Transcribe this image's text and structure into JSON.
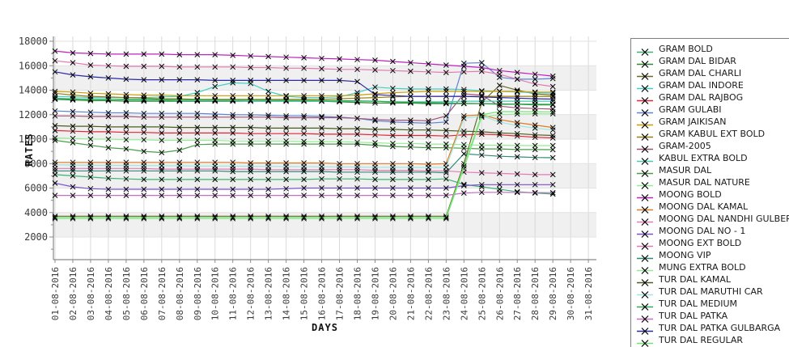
{
  "chart_data": {
    "type": "line",
    "title": "",
    "xlabel": "DAYS",
    "ylabel": "RATES",
    "legend_position": "right",
    "grid": true,
    "marker": "x",
    "marker_color": "#000000",
    "band_color": "#f0f0f0",
    "band_fill_ranges": [
      [
        2000,
        4000
      ],
      [
        6000,
        8000
      ],
      [
        10000,
        12000
      ],
      [
        14000,
        16000
      ]
    ],
    "ylim": [
      0,
      18000
    ],
    "y_ticks": [
      2000,
      4000,
      6000,
      8000,
      10000,
      12000,
      14000,
      16000,
      18000
    ],
    "x_categories": [
      "01-08-2016",
      "02-08-2016",
      "03-08-2016",
      "04-08-2016",
      "05-08-2016",
      "06-08-2016",
      "07-08-2016",
      "08-08-2016",
      "09-08-2016",
      "10-08-2016",
      "11-08-2016",
      "12-08-2016",
      "13-08-2016",
      "14-08-2016",
      "15-08-2016",
      "16-08-2016",
      "17-08-2016",
      "18-08-2016",
      "19-08-2016",
      "20-08-2016",
      "21-08-2016",
      "22-08-2016",
      "23-08-2016",
      "24-08-2016",
      "25-08-2016",
      "26-08-2016",
      "27-08-2016",
      "28-08-2016",
      "29-08-2016",
      "30-08-2016",
      "31-08-2016"
    ],
    "data_days_count": 29,
    "series": [
      {
        "name": "GRAM BOLD",
        "color": "#3cb371",
        "values": [
          7100,
          7000,
          6900,
          6800,
          6750,
          6700,
          6700,
          6700,
          6700,
          6700,
          6700,
          6700,
          6700,
          6700,
          6700,
          6750,
          6750,
          6750,
          6700,
          6700,
          6700,
          6700,
          6750,
          6300,
          6100,
          5900,
          5700,
          5600,
          5510
        ]
      },
      {
        "name": "GRAM DAL BIDAR",
        "color": "#2e8b2e",
        "values": [
          13250,
          13200,
          13150,
          13150,
          13100,
          13100,
          13100,
          13100,
          13100,
          13100,
          13100,
          13100,
          13100,
          13100,
          13100,
          13100,
          13050,
          13000,
          12950,
          12950,
          12950,
          12900,
          12900,
          12900,
          12900,
          12850,
          12850,
          12800,
          12800
        ]
      },
      {
        "name": "GRAM DAL CHARLI",
        "color": "#6b6b2e",
        "values": [
          3700,
          3700,
          3700,
          3700,
          3700,
          3700,
          3700,
          3700,
          3700,
          3700,
          3700,
          3700,
          3700,
          3700,
          3700,
          3700,
          3700,
          3700,
          3700,
          3700,
          3700,
          3700,
          3700,
          8000,
          13000,
          14400,
          14000,
          13700,
          13600
        ]
      },
      {
        "name": "GRAM DAL INDORE",
        "color": "#40d0c8",
        "values": [
          13500,
          13450,
          13400,
          13400,
          13400,
          13400,
          13450,
          13500,
          13800,
          14300,
          14600,
          14550,
          13900,
          13500,
          13400,
          13400,
          13450,
          13800,
          14250,
          14150,
          14100,
          14100,
          14100,
          14050,
          13950,
          13900,
          13850,
          13800,
          13750
        ]
      },
      {
        "name": "GRAM DAL RAJBOG",
        "color": "#e32636",
        "values": [
          10700,
          10650,
          10600,
          10600,
          10550,
          10550,
          10500,
          10500,
          10500,
          10500,
          10500,
          10450,
          10450,
          10450,
          10450,
          10400,
          10400,
          10400,
          10350,
          10300,
          10300,
          10300,
          10250,
          10350,
          10400,
          10350,
          10250,
          10150,
          10100
        ]
      },
      {
        "name": "GRAM GULABI",
        "color": "#5b84d4",
        "values": [
          12300,
          12250,
          12200,
          12150,
          12150,
          12100,
          12100,
          12100,
          12100,
          12050,
          12000,
          12000,
          11950,
          11900,
          11900,
          11850,
          11800,
          11700,
          11500,
          11400,
          11350,
          11300,
          11400,
          16200,
          16250,
          15050,
          14900,
          14900,
          14950
        ]
      },
      {
        "name": "GRAM JAIKISAN",
        "color": "#cc9a00",
        "values": [
          13900,
          13850,
          13750,
          13700,
          13650,
          13600,
          13600,
          13550,
          13550,
          13550,
          13550,
          13550,
          13550,
          13550,
          13550,
          13550,
          13550,
          13600,
          13700,
          13800,
          13850,
          13900,
          13900,
          13900,
          13900,
          13900,
          13900,
          13850,
          13850
        ]
      },
      {
        "name": "GRAM KABUL EXT BOLD",
        "color": "#9a7d0a",
        "values": [
          13750,
          13600,
          13500,
          13450,
          13400,
          13350,
          13300,
          13300,
          13250,
          13250,
          13250,
          13250,
          13250,
          13250,
          13250,
          13250,
          13300,
          13350,
          13400,
          13450,
          13500,
          13500,
          13500,
          13500,
          13500,
          13500,
          13500,
          13500,
          13480
        ]
      },
      {
        "name": "GRAM-2005",
        "color": "#a05278",
        "values": [
          11900,
          11900,
          11850,
          11850,
          11850,
          11800,
          11800,
          11800,
          11800,
          11800,
          11800,
          11800,
          11800,
          11750,
          11750,
          11750,
          11750,
          11700,
          11600,
          11550,
          11550,
          11500,
          11900,
          13700,
          13600,
          12700,
          12550,
          12500,
          12450
        ]
      },
      {
        "name": "KABUL EXTRA BOLD",
        "color": "#48c9b0",
        "values": [
          13350,
          13300,
          13250,
          13250,
          13200,
          13200,
          13200,
          13150,
          13150,
          13150,
          13150,
          13100,
          13100,
          13100,
          13100,
          13100,
          13100,
          13100,
          13100,
          13050,
          13050,
          13050,
          13050,
          13100,
          13100,
          13100,
          13100,
          13100,
          13100
        ]
      },
      {
        "name": "MASUR DAL",
        "color": "#4a9e4a",
        "values": [
          9900,
          9700,
          9500,
          9300,
          9200,
          9000,
          8900,
          9100,
          9550,
          9600,
          9600,
          9600,
          9600,
          9600,
          9600,
          9600,
          9600,
          9600,
          9500,
          9400,
          9350,
          9300,
          9300,
          9250,
          9200,
          9200,
          9150,
          9150,
          9140
        ]
      },
      {
        "name": "MASUR DAL NATURE",
        "color": "#90ee90",
        "values": [
          10100,
          10050,
          10000,
          10000,
          9950,
          9950,
          9900,
          9900,
          9900,
          9900,
          9850,
          9850,
          9850,
          9850,
          9800,
          9800,
          9800,
          9750,
          9700,
          9650,
          9650,
          9600,
          9600,
          9550,
          9500,
          9500,
          9480,
          9470,
          9470
        ]
      },
      {
        "name": "MOONG BOLD",
        "color": "#c020c0",
        "values": [
          17200,
          17050,
          17000,
          16950,
          16950,
          16950,
          16950,
          16900,
          16900,
          16900,
          16850,
          16800,
          16750,
          16700,
          16650,
          16600,
          16550,
          16500,
          16450,
          16350,
          16250,
          16150,
          16050,
          15950,
          15850,
          15600,
          15450,
          15300,
          15150
        ]
      },
      {
        "name": "MOONG DAL KAMAL",
        "color": "#e07b20",
        "values": [
          8100,
          8100,
          8100,
          8100,
          8100,
          8100,
          8100,
          8100,
          8100,
          8100,
          8100,
          8050,
          8050,
          8050,
          8050,
          8050,
          8000,
          8000,
          8000,
          8000,
          8000,
          7950,
          8000,
          11900,
          12000,
          11600,
          11350,
          11150,
          10950
        ]
      },
      {
        "name": "MOONG DAL NANDHI GULBERGA",
        "color": "#e878b8",
        "values": [
          7600,
          7600,
          7600,
          7600,
          7600,
          7600,
          7550,
          7550,
          7550,
          7550,
          7550,
          7550,
          7500,
          7500,
          7500,
          7500,
          7500,
          7500,
          7450,
          7450,
          7450,
          7400,
          7400,
          7300,
          7250,
          7200,
          7150,
          7100,
          7100
        ]
      },
      {
        "name": "MOONG DAL NO - 1",
        "color": "#7a4fd0",
        "values": [
          6400,
          6100,
          5950,
          5900,
          5900,
          5900,
          5900,
          5900,
          5900,
          5900,
          5900,
          5900,
          5900,
          5950,
          6000,
          6000,
          6000,
          6000,
          6000,
          6000,
          6000,
          6000,
          6000,
          6200,
          6280,
          6280,
          6280,
          6280,
          6280
        ]
      },
      {
        "name": "MOONG EXT BOLD",
        "color": "#e07bb0",
        "values": [
          16400,
          16250,
          16050,
          16000,
          15950,
          15950,
          15950,
          15900,
          15900,
          15900,
          15900,
          15850,
          15850,
          15800,
          15800,
          15750,
          15700,
          15700,
          15650,
          15600,
          15550,
          15500,
          15450,
          15500,
          15550,
          15300,
          14900,
          14500,
          14300
        ]
      },
      {
        "name": "MOONG VIP",
        "color": "#2e8b74",
        "values": [
          7400,
          7400,
          7400,
          7400,
          7400,
          7400,
          7400,
          7400,
          7400,
          7400,
          7350,
          7350,
          7350,
          7350,
          7350,
          7350,
          7300,
          7300,
          7300,
          7300,
          7300,
          7300,
          7250,
          8800,
          8700,
          8600,
          8550,
          8500,
          8480
        ]
      },
      {
        "name": "MUNG EXTRA BOLD",
        "color": "#98e698",
        "values": [
          3500,
          3500,
          3500,
          3500,
          3500,
          3500,
          3500,
          3500,
          3500,
          3500,
          3500,
          3500,
          3500,
          3500,
          3500,
          3500,
          3500,
          3500,
          3500,
          3500,
          3500,
          3500,
          3500,
          7600,
          11800,
          12000,
          12050,
          12070,
          12070
        ]
      },
      {
        "name": "TUR DAL KAMAL",
        "color": "#4a5d23",
        "values": [
          11100,
          11050,
          11050,
          11000,
          11000,
          11000,
          11000,
          10950,
          10950,
          10950,
          10950,
          10950,
          10900,
          10900,
          10900,
          10900,
          10850,
          10850,
          10800,
          10800,
          10750,
          10750,
          10700,
          10650,
          10600,
          10500,
          10450,
          10350,
          10300
        ]
      },
      {
        "name": "TUR DAL MARUTHI CAR",
        "color": "#9fe6e0",
        "values": [
          7900,
          7880,
          7860,
          7850,
          7850,
          7840,
          7830,
          7820,
          7800,
          7800,
          7790,
          7780,
          7770,
          7760,
          7750,
          7740,
          7730,
          7720,
          7700,
          7700,
          7690,
          7680,
          7700,
          11700,
          11900,
          11400,
          11100,
          10900,
          10750
        ]
      },
      {
        "name": "TUR DAL MEDIUM",
        "color": "#2eaa55",
        "values": [
          13300,
          13280,
          13260,
          13250,
          13250,
          13240,
          13230,
          13220,
          13210,
          13200,
          13200,
          13190,
          13180,
          13170,
          13160,
          13150,
          13140,
          13130,
          13100,
          13050,
          13000,
          12980,
          12950,
          12930,
          12910,
          12890,
          12870,
          12850,
          12840
        ]
      },
      {
        "name": "TUR DAL PATKA",
        "color": "#c46ec4",
        "values": [
          5400,
          5400,
          5400,
          5400,
          5400,
          5400,
          5400,
          5400,
          5400,
          5400,
          5400,
          5400,
          5400,
          5400,
          5400,
          5400,
          5400,
          5400,
          5400,
          5400,
          5400,
          5400,
          5400,
          5600,
          5650,
          5650,
          5640,
          5630,
          5620
        ]
      },
      {
        "name": "TUR DAL PATKA GULBARGA",
        "color": "#2929a8",
        "values": [
          15500,
          15250,
          15100,
          15000,
          14900,
          14850,
          14850,
          14850,
          14850,
          14800,
          14800,
          14800,
          14800,
          14800,
          14800,
          14800,
          14800,
          14700,
          13650,
          13550,
          13500,
          13500,
          13500,
          13500,
          13450,
          13400,
          13350,
          13300,
          13270
        ]
      },
      {
        "name": "TUR DAL REGULAR",
        "color": "#6ee66e",
        "values": [
          3600,
          3600,
          3600,
          3600,
          3600,
          3600,
          3600,
          3600,
          3600,
          3600,
          3600,
          3600,
          3600,
          3600,
          3600,
          3600,
          3600,
          3600,
          3600,
          3600,
          3600,
          3600,
          3600,
          7800,
          12000,
          12250,
          12250,
          12240,
          12230
        ]
      }
    ]
  }
}
